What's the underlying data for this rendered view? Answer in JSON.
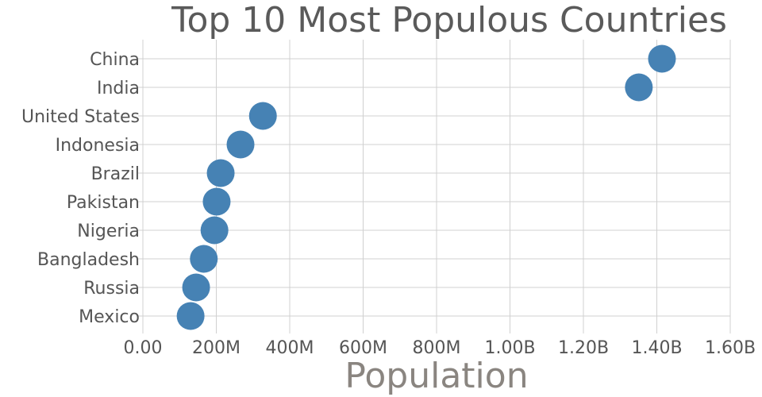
{
  "chart_data": {
    "type": "scatter",
    "title": "Top 10 Most Populous Countries",
    "xlabel": "Population",
    "ylabel": "",
    "xlim": [
      0,
      1600000000
    ],
    "x_ticks": [
      0,
      200000000,
      400000000,
      600000000,
      800000000,
      1000000000,
      1200000000,
      1400000000,
      1600000000
    ],
    "x_tick_labels": [
      "0.00",
      "200M",
      "400M",
      "600M",
      "800M",
      "1.00B",
      "1.20B",
      "1.40B",
      "1.60B"
    ],
    "categories": [
      "China",
      "India",
      "United States",
      "Indonesia",
      "Brazil",
      "Pakistan",
      "Nigeria",
      "Bangladesh",
      "Russia",
      "Mexico"
    ],
    "values": [
      1414000000,
      1351000000,
      327000000,
      266000000,
      212000000,
      201000000,
      195000000,
      166000000,
      145000000,
      130000000
    ],
    "grid": true,
    "colors": {
      "marker": "#4682b4",
      "grid": "#d0d0d0",
      "text": "#555555",
      "xlabel": "#8a8580"
    }
  }
}
